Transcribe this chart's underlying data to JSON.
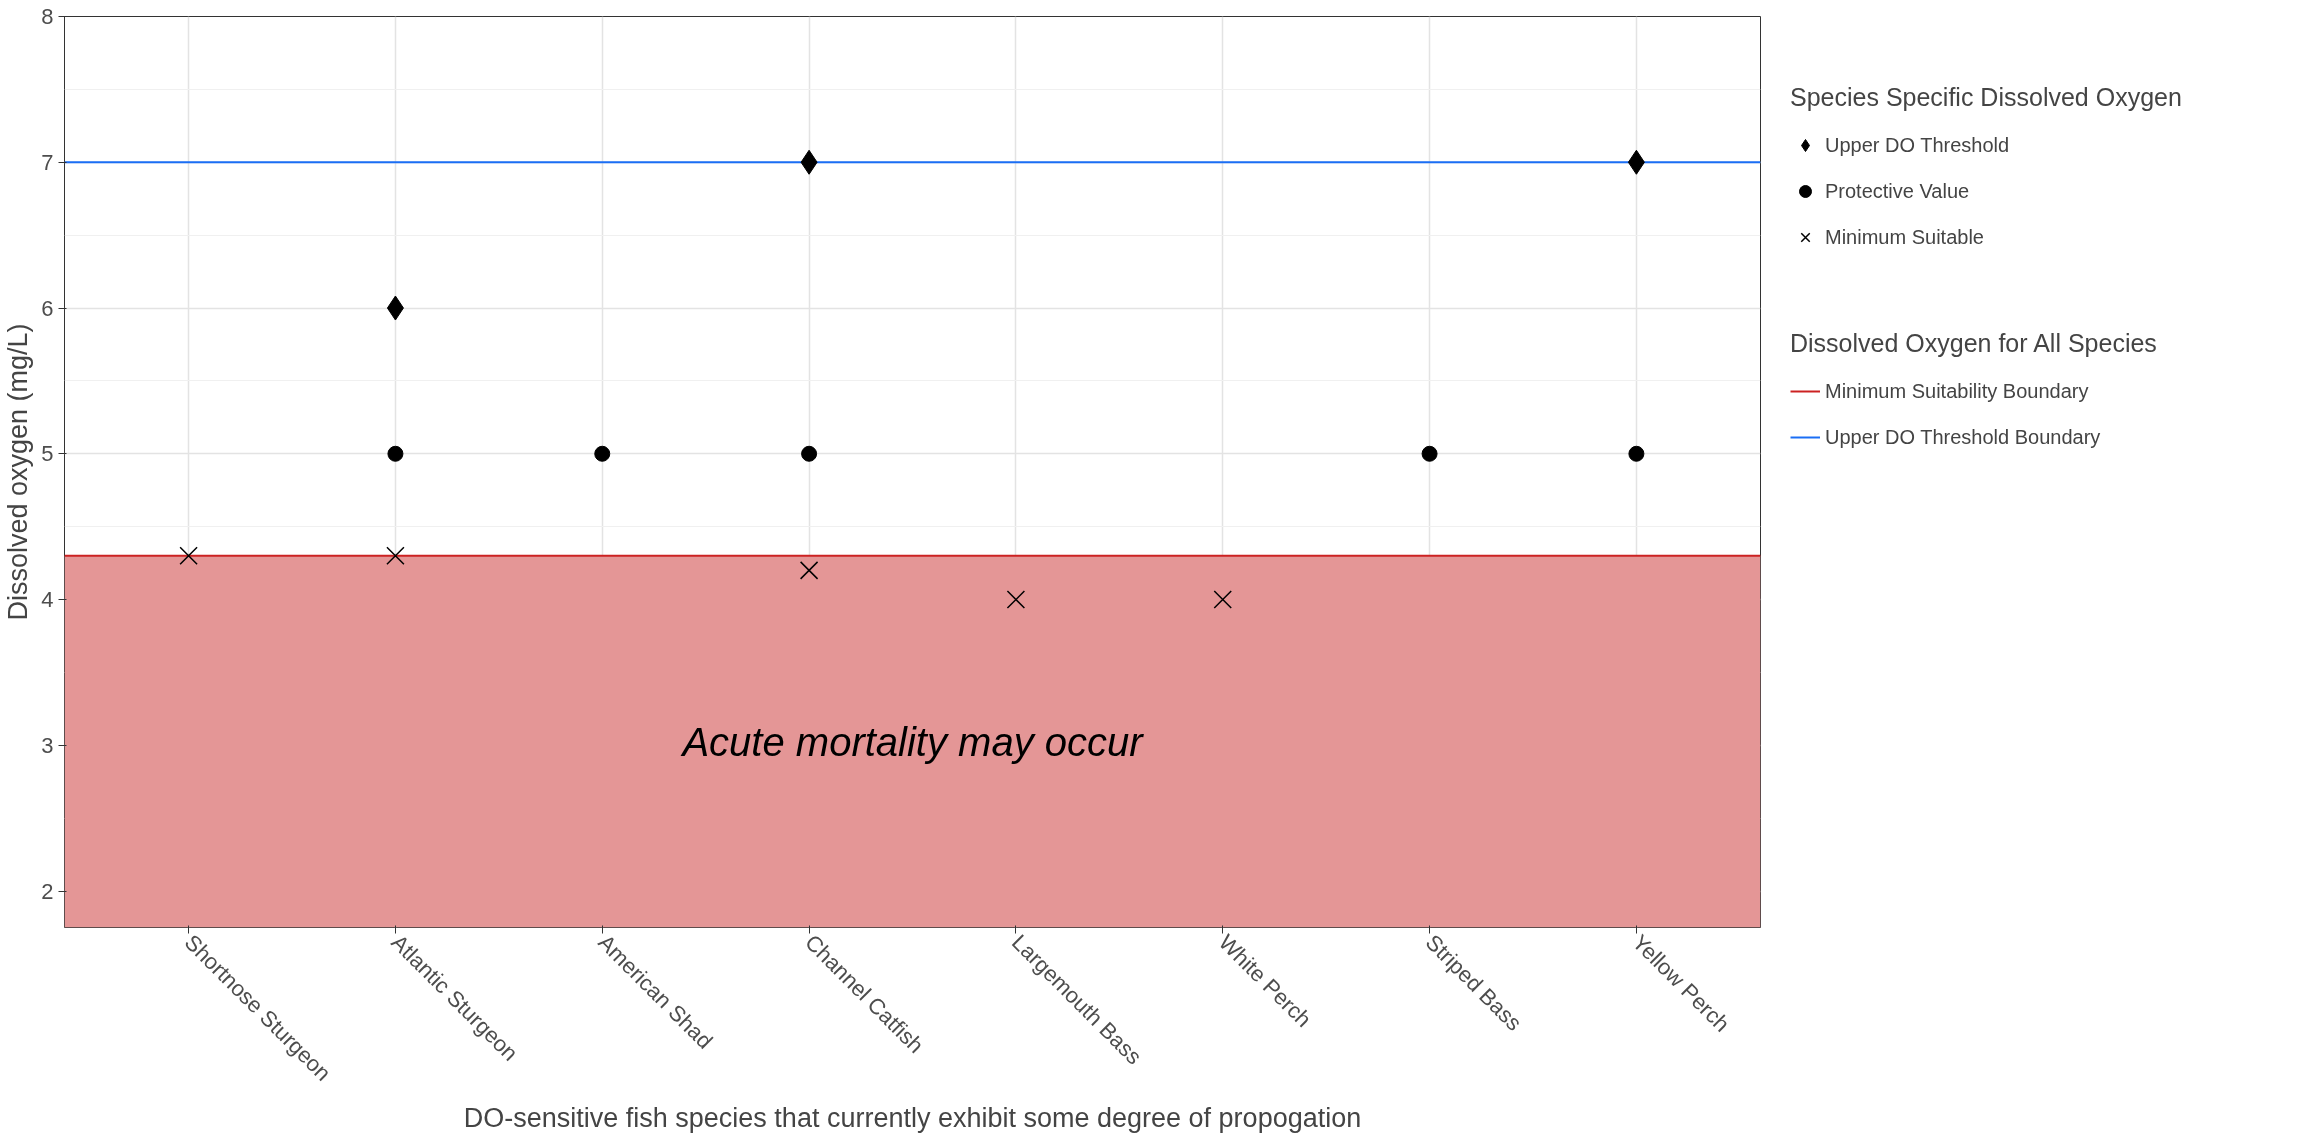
{
  "chart_data": {
    "type": "scatter",
    "xlabel": "DO-sensitive fish species that currently exhibit some degree of propogation",
    "ylabel": "Dissolved oxygen (mg/L)",
    "legend_title": "Species Specific Dissolved Oxygen",
    "annotations": [
      "Dissolved Oxygen for All Species"
    ],
    "categories": [
      "Shortnose Sturgeon",
      "Atlantic Sturgeon",
      "American Shad",
      "Channel Catfish",
      "Largemouth Bass",
      "White Perch",
      "Striped Bass",
      "Yellow Perch"
    ],
    "series": [
      {
        "name": "Upper DO Threshold",
        "color": "#000000",
        "marker": "diamond",
        "values": [
          null,
          6,
          null,
          7,
          null,
          null,
          null,
          7
        ]
      },
      {
        "name": "Protective Value",
        "color": "#000000",
        "marker": "circle",
        "values": [
          null,
          5,
          5,
          5,
          null,
          null,
          5,
          5
        ]
      },
      {
        "name": "Minimum Suitable",
        "color": "#000000",
        "marker": "cross",
        "values": [
          4.3,
          4.3,
          null,
          4.2,
          4.0,
          4.0,
          null,
          null
        ]
      }
    ],
    "ref_lines": [
      {
        "axis": "y",
        "value": 4.3,
        "label": "Minimum Suitability Boundary",
        "color": "#cc2222"
      },
      {
        "axis": "y",
        "value": 7,
        "label": "Upper DO Threshold Boundary",
        "color": "#1a6ef5"
      }
    ],
    "bands": [
      {
        "axis": "y",
        "from": 1.75,
        "to": 4.3,
        "label": "Acute mortality may occur",
        "color": "#e49696"
      }
    ],
    "ylim": [
      1.75,
      8
    ],
    "yticks": [
      2,
      3,
      4,
      5,
      6,
      7,
      8
    ],
    "grid": true,
    "legend": "right"
  }
}
